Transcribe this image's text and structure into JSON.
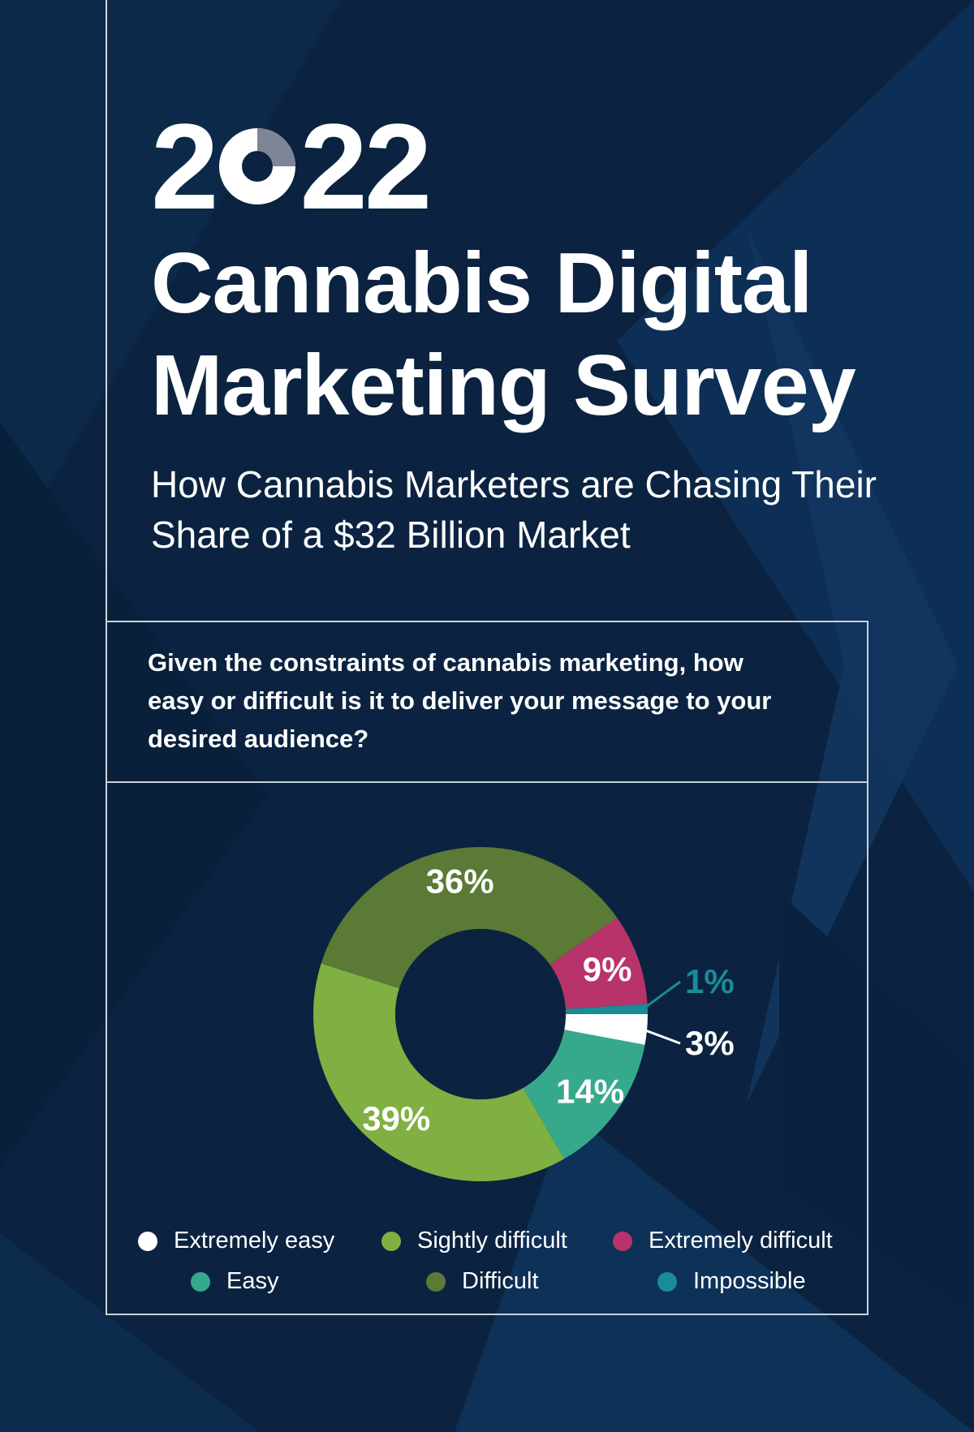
{
  "header": {
    "year_digits": [
      "2",
      "22"
    ],
    "year_mark_icon": "pie-zero-icon",
    "title": "Cannabis Digital Marketing Survey",
    "subtitle": "How Cannabis Marketers are Chasing Their Share of a $32 Billion Market"
  },
  "question": "Given the constraints of cannabis marketing, how easy or difficult is it to deliver your message to your desired audience?",
  "colors": {
    "background": "#0b2340",
    "extremely_easy": "#ffffff",
    "easy": "#36a98d",
    "slightly_difficult": "#7fb041",
    "difficult": "#5a7a35",
    "extremely_difficult": "#b8336a",
    "impossible": "#1b8a99"
  },
  "chart_data": {
    "type": "pie",
    "variant": "donut",
    "title": "",
    "slices": [
      {
        "name": "Extremely easy",
        "value": 3,
        "label": "3%",
        "color": "#ffffff"
      },
      {
        "name": "Easy",
        "value": 14,
        "label": "14%",
        "color": "#36a98d"
      },
      {
        "name": "Sightly difficult",
        "value": 39,
        "label": "39%",
        "color": "#7fb041"
      },
      {
        "name": "Difficult",
        "value": 36,
        "label": "36%",
        "color": "#5a7a35"
      },
      {
        "name": "Extremely difficult",
        "value": 9,
        "label": "9%",
        "color": "#b8336a"
      },
      {
        "name": "Impossible",
        "value": 1,
        "label": "1%",
        "color": "#1b8a99"
      }
    ],
    "legend_position": "bottom",
    "legend": [
      {
        "label": "Extremely easy",
        "color": "#ffffff"
      },
      {
        "label": "Sightly difficult",
        "color": "#7fb041"
      },
      {
        "label": "Extremely difficult",
        "color": "#b8336a"
      },
      {
        "label": "Easy",
        "color": "#36a98d"
      },
      {
        "label": "Difficult",
        "color": "#5a7a35"
      },
      {
        "label": "Impossible",
        "color": "#1b8a99"
      }
    ]
  }
}
